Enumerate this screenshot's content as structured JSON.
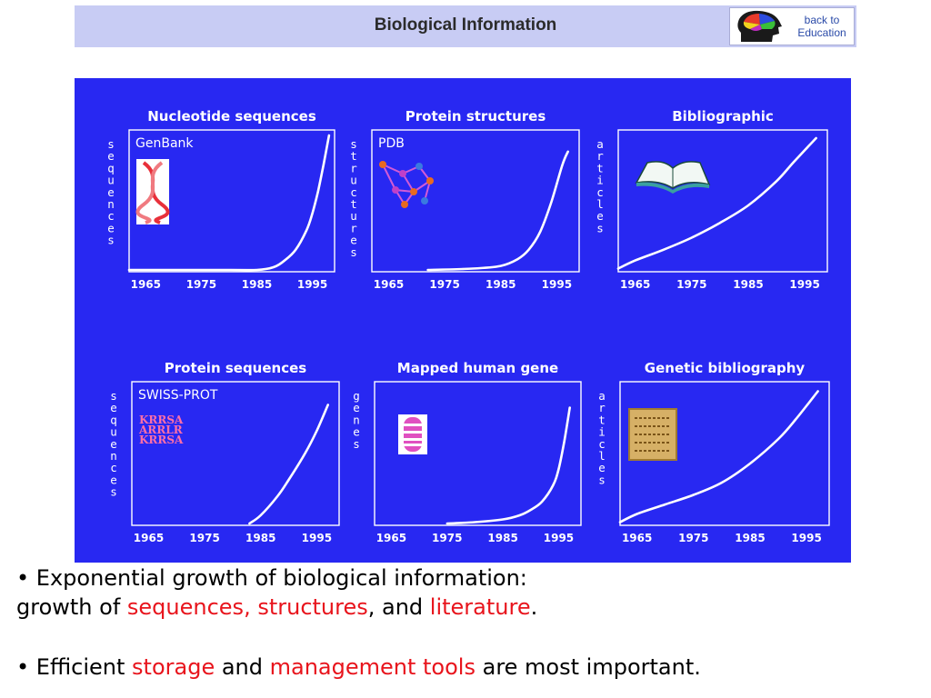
{
  "header": {
    "title": "Biological Information",
    "back_link": {
      "line1": "back to",
      "line2": "Education"
    }
  },
  "colors": {
    "panel": "#2828f2",
    "header_bg": "#c8ccf4",
    "highlight": "#e8141c"
  },
  "chart_data": [
    {
      "type": "line",
      "title": "Nucleotide sequences",
      "ylabel": "sequences",
      "inset_label": "GenBank",
      "xlim": [
        1962,
        1999
      ],
      "xticks": [
        "1965",
        "1975",
        "1985",
        "1995"
      ],
      "ylim": [
        0,
        100
      ],
      "x": [
        1962,
        1980,
        1985,
        1988,
        1990,
        1992,
        1994,
        1995,
        1996,
        1997,
        1998
      ],
      "y": [
        0,
        0,
        0,
        2,
        7,
        15,
        30,
        42,
        58,
        78,
        100
      ],
      "icon": "dna-helix-icon"
    },
    {
      "type": "line",
      "title": "Protein structures",
      "ylabel": "structures",
      "inset_label": "PDB",
      "xlim": [
        1962,
        1999
      ],
      "xticks": [
        "1965",
        "1975",
        "1985",
        "1995"
      ],
      "ylim": [
        0,
        100
      ],
      "x": [
        1972,
        1980,
        1985,
        1988,
        1990,
        1992,
        1994,
        1996,
        1997
      ],
      "y": [
        0,
        1,
        3,
        8,
        15,
        28,
        50,
        78,
        88
      ],
      "icon": "molecule-structure-icon"
    },
    {
      "type": "line",
      "title": "Bibliographic",
      "ylabel": "articles",
      "inset_label": "",
      "xlim": [
        1962,
        1999
      ],
      "xticks": [
        "1965",
        "1975",
        "1985",
        "1995"
      ],
      "ylim": [
        0,
        100
      ],
      "x": [
        1962,
        1965,
        1970,
        1975,
        1980,
        1985,
        1990,
        1993,
        1997
      ],
      "y": [
        1,
        7,
        15,
        24,
        35,
        48,
        66,
        80,
        98
      ],
      "icon": "open-book-icon"
    },
    {
      "type": "line",
      "title": "Protein sequences",
      "ylabel": "sequences",
      "inset_label": "SWISS-PROT",
      "xlim": [
        1962,
        1999
      ],
      "xticks": [
        "1965",
        "1975",
        "1985",
        "1995"
      ],
      "ylim": [
        0,
        100
      ],
      "x": [
        1983,
        1985,
        1988,
        1990,
        1993,
        1995,
        1997
      ],
      "y": [
        0,
        6,
        20,
        32,
        52,
        68,
        87
      ],
      "icon": "sequence-letters-icon",
      "icon_text": [
        "KRRSA",
        "ARRLR",
        "KRRSA"
      ]
    },
    {
      "type": "line",
      "title": "Mapped human gene",
      "ylabel": "genes",
      "inset_label": "",
      "xlim": [
        1962,
        1999
      ],
      "xticks": [
        "1965",
        "1975",
        "1985",
        "1995"
      ],
      "ylim": [
        0,
        100
      ],
      "x": [
        1975,
        1980,
        1985,
        1988,
        1990,
        1992,
        1994,
        1995,
        1996,
        1997
      ],
      "y": [
        0,
        1,
        3,
        6,
        10,
        16,
        28,
        40,
        60,
        85
      ],
      "icon": "chromosome-icon"
    },
    {
      "type": "line",
      "title": "Genetic bibliography",
      "ylabel": "articles",
      "inset_label": "",
      "xlim": [
        1962,
        1999
      ],
      "xticks": [
        "1965",
        "1975",
        "1985",
        "1995"
      ],
      "ylim": [
        0,
        100
      ],
      "x": [
        1962,
        1965,
        1970,
        1975,
        1980,
        1985,
        1990,
        1993,
        1997
      ],
      "y": [
        1,
        7,
        14,
        21,
        30,
        44,
        62,
        76,
        97
      ],
      "icon": "manuscript-scroll-icon"
    }
  ],
  "bullets": {
    "b1_prefix": "• Exponential growth of biological information:",
    "b1_line2_a": "growth of ",
    "b1_hl1": "sequences, structures",
    "b1_line2_b": ", and ",
    "b1_hl2": "literature",
    "b1_end": ".",
    "b2_a": "• Efficient ",
    "b2_hl1": "storage",
    "b2_b": " and ",
    "b2_hl2": "management tools",
    "b2_c": " are most important."
  }
}
